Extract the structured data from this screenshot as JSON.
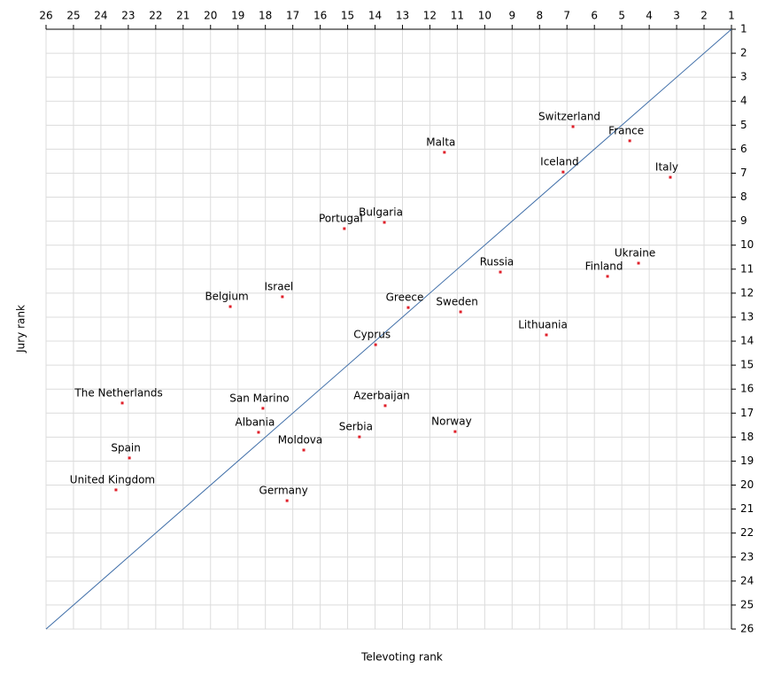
{
  "chart_data": {
    "type": "scatter",
    "x_label": "Televoting rank",
    "y_label": "Jury rank",
    "xlim": [
      26,
      1
    ],
    "ylim": [
      26,
      1
    ],
    "xticks": [
      26,
      25,
      24,
      23,
      22,
      21,
      20,
      19,
      18,
      17,
      16,
      15,
      14,
      13,
      12,
      11,
      10,
      9,
      8,
      7,
      6,
      5,
      4,
      3,
      2,
      1
    ],
    "yticks": [
      26,
      25,
      24,
      23,
      22,
      21,
      20,
      19,
      18,
      17,
      16,
      15,
      14,
      13,
      12,
      11,
      10,
      9,
      8,
      7,
      6,
      5,
      4,
      3,
      2,
      1
    ],
    "grid": true,
    "color": "#e0202a",
    "diagonal_color": "#3f6ea8",
    "labels": [
      "Switzerland",
      "France",
      "Malta",
      "Iceland",
      "Italy",
      "Portugal",
      "Bulgaria",
      "Ukraine",
      "Russia",
      "Finland",
      "Israel",
      "Belgium",
      "Greece",
      "Sweden",
      "Lithuania",
      "Cyprus",
      "The Netherlands",
      "San Marino",
      "Azerbaijan",
      "Albania",
      "Serbia",
      "Norway",
      "Moldova",
      "Spain",
      "United Kingdom",
      "Germany"
    ],
    "x": [
      6.78,
      4.71,
      11.47,
      7.14,
      3.23,
      15.12,
      13.66,
      4.39,
      9.43,
      5.52,
      17.38,
      19.28,
      12.79,
      10.88,
      7.75,
      13.98,
      23.22,
      18.09,
      13.63,
      18.25,
      14.57,
      11.08,
      16.6,
      22.96,
      23.45,
      17.21
    ],
    "values": [
      5.06,
      5.65,
      6.13,
      6.95,
      7.17,
      9.31,
      9.05,
      10.75,
      11.12,
      11.3,
      12.15,
      12.56,
      12.6,
      12.78,
      13.74,
      14.15,
      16.58,
      16.8,
      16.69,
      17.8,
      17.99,
      17.77,
      18.54,
      18.87,
      20.2,
      20.65
    ]
  }
}
